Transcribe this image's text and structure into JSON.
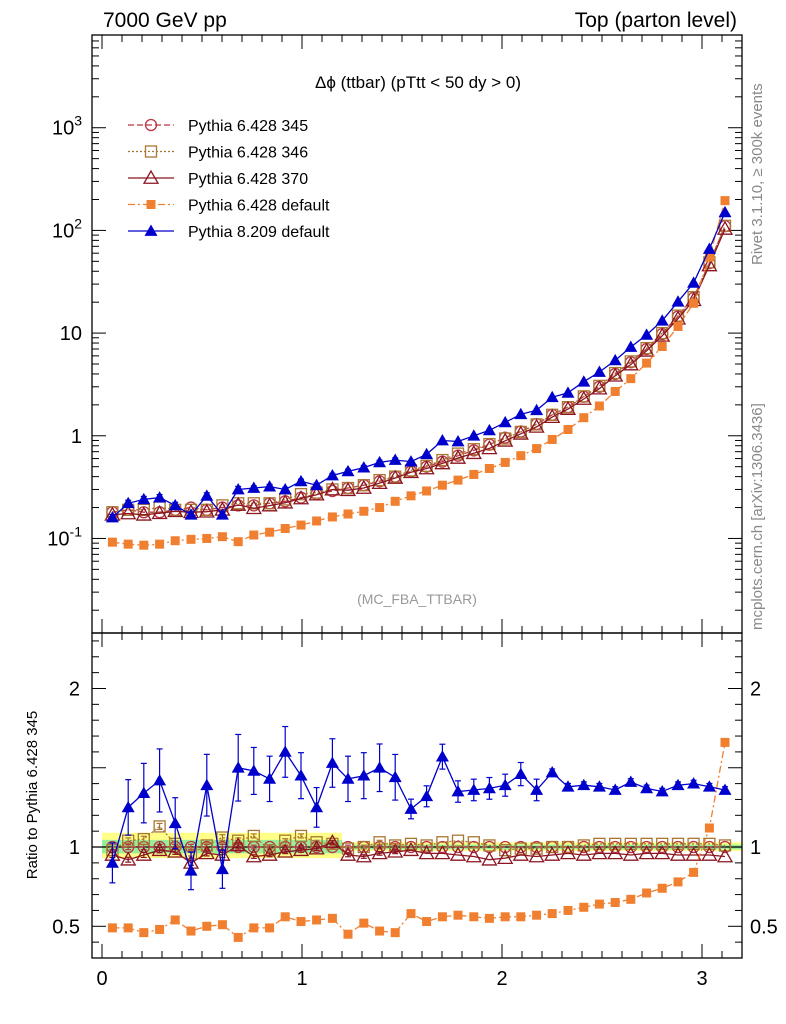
{
  "header": {
    "left": "7000 GeV pp",
    "right": "Top (parton level)"
  },
  "side_text": {
    "top": "Rivet 3.1.10, ≥ 300k events",
    "bottom": "mcplots.cern.ch [arXiv:1306.3436]"
  },
  "chart_data": {
    "type": "line",
    "title": "Δϕ (ttbar) (pTtt < 50 dy > 0)",
    "analysis": "(MC_FBA_TTBAR)",
    "ratio_ylabel": "Ratio to Pythia 6.428 345",
    "x": [
      0.052,
      0.131,
      0.209,
      0.288,
      0.366,
      0.445,
      0.524,
      0.602,
      0.681,
      0.759,
      0.838,
      0.916,
      0.995,
      1.073,
      1.152,
      1.23,
      1.309,
      1.388,
      1.466,
      1.545,
      1.623,
      1.702,
      1.78,
      1.859,
      1.937,
      2.016,
      2.094,
      2.173,
      2.251,
      2.33,
      2.409,
      2.487,
      2.566,
      2.644,
      2.723,
      2.801,
      2.88,
      2.958,
      3.037,
      3.115
    ],
    "xlim": [
      -0.05,
      3.2
    ],
    "xticks": [
      "0",
      "1",
      "2",
      "3"
    ],
    "main_ylim": [
      0.012,
      8000
    ],
    "main_log": true,
    "main_yticks": [
      "10^-1",
      "1",
      "10",
      "10^2",
      "10^3"
    ],
    "ratio_ylim": [
      0.3,
      2.35
    ],
    "ratio_yticks": [
      "0.5",
      "1",
      "2"
    ],
    "band": [
      {
        "xmin": -0.05,
        "xmax": 1.2,
        "outer": [
          0.93,
          1.09
        ],
        "inner": [
          0.96,
          1.045
        ]
      },
      {
        "xmin": 1.2,
        "xmax": 3.2,
        "outer": [
          0.975,
          1.03
        ],
        "inner": [
          0.985,
          1.015
        ]
      }
    ],
    "legend_position": "top-left",
    "series": [
      {
        "name": "Pythia 6.428 345",
        "color": "#bb3344",
        "marker": "circle-open",
        "dash": "6,3",
        "ratio": [
          1,
          1,
          1,
          1,
          1,
          1,
          1,
          1,
          1,
          1,
          1,
          1,
          1,
          1,
          1,
          1,
          1,
          1,
          1,
          1,
          1,
          1,
          1,
          1,
          1,
          1,
          1,
          1,
          1,
          1,
          1,
          1,
          1,
          1,
          1,
          1,
          1,
          1,
          1,
          1
        ],
        "values": [
          0.18,
          0.19,
          0.18,
          0.18,
          0.19,
          0.2,
          0.19,
          0.2,
          0.21,
          0.21,
          0.22,
          0.23,
          0.25,
          0.27,
          0.29,
          0.31,
          0.33,
          0.36,
          0.4,
          0.45,
          0.5,
          0.56,
          0.64,
          0.72,
          0.82,
          0.96,
          1.1,
          1.3,
          1.6,
          1.9,
          2.4,
          3.0,
          4.0,
          5.2,
          7.0,
          9.8,
          14.5,
          22.0,
          48.0,
          110.0
        ]
      },
      {
        "name": "Pythia 6.428 346",
        "color": "#aa7733",
        "marker": "square-open",
        "dash": "2,2",
        "ratio": [
          0.98,
          1.04,
          1.05,
          1.13,
          1.02,
          0.96,
          1.01,
          1.06,
          1.04,
          1.07,
          0.98,
          1.04,
          1.07,
          1.03,
          1.02,
          0.99,
          1.0,
          1.03,
          1.01,
          1.02,
          1.01,
          1.03,
          1.04,
          1.03,
          1.01,
          0.98,
          0.99,
          0.99,
          1.0,
          1.0,
          1.01,
          1.02,
          1.02,
          1.02,
          1.02,
          1.02,
          1.02,
          1.02,
          1.02,
          1.01
        ],
        "values": [
          0.18,
          0.19,
          0.19,
          0.2,
          0.19,
          0.19,
          0.19,
          0.21,
          0.22,
          0.22,
          0.22,
          0.24,
          0.27,
          0.28,
          0.3,
          0.31,
          0.33,
          0.37,
          0.4,
          0.46,
          0.51,
          0.58,
          0.67,
          0.74,
          0.83,
          0.94,
          1.09,
          1.29,
          1.6,
          1.9,
          2.42,
          3.06,
          4.08,
          5.3,
          7.14,
          10.0,
          14.8,
          22.4,
          48.9,
          111.0
        ]
      },
      {
        "name": "Pythia 6.428 370",
        "color": "#8b1520",
        "marker": "triangle-open",
        "dash": "",
        "ratio": [
          0.95,
          0.92,
          0.95,
          0.98,
          0.97,
          0.9,
          0.96,
          0.95,
          1.01,
          0.94,
          0.95,
          0.97,
          0.98,
          0.99,
          1.03,
          0.95,
          0.94,
          0.96,
          0.97,
          0.98,
          0.96,
          0.96,
          0.95,
          0.94,
          0.92,
          0.93,
          0.95,
          0.94,
          0.95,
          0.96,
          0.95,
          0.96,
          0.96,
          0.95,
          0.96,
          0.96,
          0.95,
          0.95,
          0.95,
          0.94
        ],
        "values": [
          0.17,
          0.175,
          0.17,
          0.176,
          0.184,
          0.18,
          0.182,
          0.19,
          0.212,
          0.197,
          0.209,
          0.223,
          0.245,
          0.267,
          0.299,
          0.295,
          0.31,
          0.346,
          0.388,
          0.441,
          0.48,
          0.538,
          0.608,
          0.677,
          0.754,
          0.893,
          1.045,
          1.22,
          1.52,
          1.82,
          2.28,
          2.88,
          3.84,
          4.94,
          6.72,
          9.41,
          13.8,
          20.9,
          45.6,
          103.4
        ]
      },
      {
        "name": "Pythia 6.428 default",
        "color": "#f07f30",
        "marker": "square",
        "dash": "7,3,2,3",
        "ratio": [
          0.49,
          0.49,
          0.46,
          0.48,
          0.54,
          0.47,
          0.5,
          0.51,
          0.43,
          0.49,
          0.49,
          0.56,
          0.53,
          0.54,
          0.55,
          0.45,
          0.52,
          0.47,
          0.46,
          0.58,
          0.53,
          0.56,
          0.57,
          0.56,
          0.55,
          0.56,
          0.56,
          0.57,
          0.58,
          0.6,
          0.62,
          0.64,
          0.65,
          0.67,
          0.71,
          0.74,
          0.78,
          0.84,
          1.12,
          1.66
        ],
        "values": [
          0.092,
          0.088,
          0.086,
          0.088,
          0.095,
          0.098,
          0.1,
          0.104,
          0.093,
          0.108,
          0.115,
          0.125,
          0.135,
          0.148,
          0.162,
          0.173,
          0.184,
          0.2,
          0.23,
          0.26,
          0.29,
          0.33,
          0.37,
          0.42,
          0.48,
          0.55,
          0.64,
          0.75,
          0.92,
          1.15,
          1.5,
          1.95,
          2.7,
          3.6,
          5.1,
          7.4,
          11.6,
          19.5,
          55.0,
          195.0
        ]
      },
      {
        "name": "Pythia 8.209 default",
        "color": "#0000cc",
        "marker": "triangle",
        "dash": "",
        "ratio": [
          0.9,
          1.25,
          1.34,
          1.42,
          1.15,
          0.85,
          1.39,
          0.86,
          1.5,
          1.48,
          1.43,
          1.6,
          1.45,
          1.25,
          1.53,
          1.43,
          1.45,
          1.5,
          1.44,
          1.24,
          1.32,
          1.57,
          1.35,
          1.36,
          1.37,
          1.39,
          1.46,
          1.36,
          1.47,
          1.38,
          1.39,
          1.38,
          1.36,
          1.41,
          1.37,
          1.35,
          1.39,
          1.4,
          1.38,
          1.36
        ],
        "values": [
          0.16,
          0.22,
          0.24,
          0.25,
          0.21,
          0.17,
          0.26,
          0.17,
          0.3,
          0.31,
          0.32,
          0.3,
          0.36,
          0.33,
          0.41,
          0.45,
          0.49,
          0.55,
          0.58,
          0.56,
          0.66,
          0.9,
          0.88,
          1.0,
          1.13,
          1.35,
          1.62,
          1.77,
          2.37,
          2.62,
          3.36,
          4.18,
          5.42,
          7.32,
          9.6,
          13.2,
          20.2,
          30.8,
          66.0,
          150.0
        ]
      }
    ]
  }
}
